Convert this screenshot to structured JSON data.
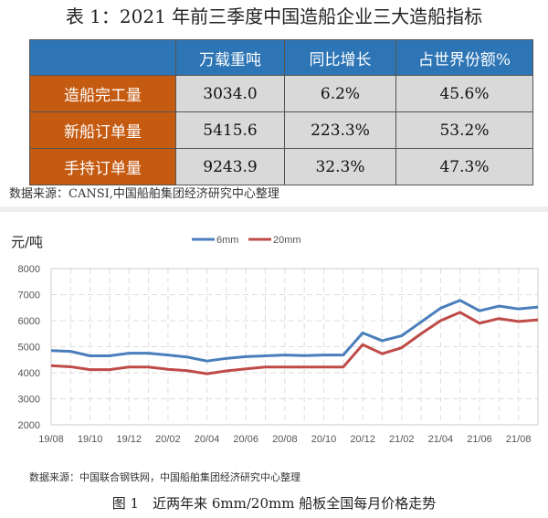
{
  "table": {
    "title": "表 1：2021 年前三季度中国造船企业三大造船指标",
    "headers": [
      "",
      "万载重吨",
      "同比增长",
      "占世界份额%"
    ],
    "rows": [
      [
        "造船完工量",
        "3034.0",
        "6.2%",
        "45.6%"
      ],
      [
        "新船订单量",
        "5415.6",
        "223.3%",
        "53.2%"
      ],
      [
        "手持订单量",
        "9243.9",
        "32.3%",
        "47.3%"
      ]
    ],
    "source": "数据来源：CANSI,中国船舶集团经济研究中心整理"
  },
  "chart_data": {
    "type": "line",
    "title": "图 1　近两年来 6mm/20mm 船板全国每月价格走势",
    "ylabel": "元/吨",
    "xlabel": "",
    "ylim": [
      2000,
      8000
    ],
    "yticks": [
      2000,
      3000,
      4000,
      5000,
      6000,
      7000,
      8000
    ],
    "x": [
      "19/08",
      "19/09",
      "19/10",
      "19/11",
      "19/12",
      "20/01",
      "20/02",
      "20/03",
      "20/04",
      "20/05",
      "20/06",
      "20/07",
      "20/08",
      "20/09",
      "20/10",
      "20/11",
      "20/12",
      "21/01",
      "21/02",
      "21/03",
      "21/04",
      "21/05",
      "21/06",
      "21/07",
      "21/08",
      "21/09"
    ],
    "xtick_labels": [
      "19/08",
      "19/10",
      "19/12",
      "20/02",
      "20/04",
      "20/06",
      "20/08",
      "20/10",
      "20/12",
      "21/02",
      "21/04",
      "21/06",
      "21/08"
    ],
    "legend": "top-center",
    "grid": true,
    "series": [
      {
        "name": "6mm",
        "color": "#4a7ebb",
        "values": [
          4850,
          4820,
          4650,
          4650,
          4750,
          4750,
          4680,
          4600,
          4450,
          4550,
          4620,
          4650,
          4680,
          4660,
          4680,
          4680,
          5530,
          5230,
          5420,
          5950,
          6480,
          6780,
          6380,
          6560,
          6450,
          6520
        ]
      },
      {
        "name": "20mm",
        "color": "#be4b48",
        "values": [
          4270,
          4230,
          4120,
          4120,
          4220,
          4220,
          4130,
          4080,
          3960,
          4070,
          4150,
          4220,
          4220,
          4220,
          4220,
          4220,
          5080,
          4730,
          4960,
          5500,
          6000,
          6320,
          5900,
          6080,
          5970,
          6030
        ]
      }
    ],
    "source": "数据来源：中国联合钢铁网，中国船舶集团经济研究中心整理"
  }
}
